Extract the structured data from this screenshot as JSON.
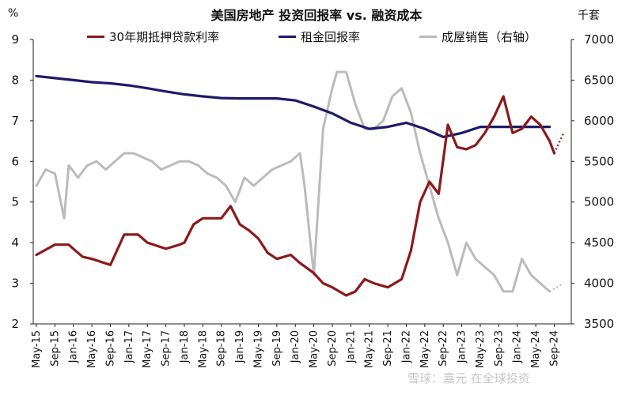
{
  "chart_data": {
    "type": "line",
    "title": "美国房地产 投资回报率 vs. 融资成本",
    "left_unit": "%",
    "right_unit": "千套",
    "legend_placement": "top",
    "grid": false,
    "left_axis": {
      "ylim": [
        2,
        9
      ],
      "ticks": [
        "2",
        "3",
        "4",
        "5",
        "6",
        "7",
        "8",
        "9"
      ]
    },
    "right_axis": {
      "ylim": [
        3500,
        7000
      ],
      "ticks": [
        "3500",
        "4000",
        "4500",
        "5000",
        "5500",
        "6000",
        "6500",
        "7000"
      ]
    },
    "x_ticks": [
      "May-15",
      "Sep-15",
      "Jan-16",
      "May-16",
      "Sep-16",
      "Jan-17",
      "May-17",
      "Sep-17",
      "Jan-18",
      "May-18",
      "Sep-18",
      "Jan-19",
      "May-19",
      "Sep-19",
      "Jan-20",
      "May-20",
      "Sep-20",
      "Jan-21",
      "May-21",
      "Sep-21",
      "Jan-22",
      "May-22",
      "Sep-22",
      "Jan-23",
      "May-23",
      "Sep-23",
      "Jan-24",
      "May-24",
      "Sep-24"
    ],
    "series": [
      {
        "name": "30年期抵押贷款利率",
        "axis": "left",
        "color": "#8b1a1a",
        "points": [
          [
            "May-15",
            3.7
          ],
          [
            "Sep-15",
            3.95
          ],
          [
            "Dec-15",
            3.95
          ],
          [
            "Jan-16",
            3.85
          ],
          [
            "Mar-16",
            3.65
          ],
          [
            "May-16",
            3.6
          ],
          [
            "Sep-16",
            3.45
          ],
          [
            "Dec-16",
            4.2
          ],
          [
            "Mar-17",
            4.2
          ],
          [
            "May-17",
            4.0
          ],
          [
            "Sep-17",
            3.85
          ],
          [
            "Dec-17",
            3.95
          ],
          [
            "Jan-18",
            4.0
          ],
          [
            "Mar-18",
            4.45
          ],
          [
            "May-18",
            4.6
          ],
          [
            "Sep-18",
            4.6
          ],
          [
            "Nov-18",
            4.9
          ],
          [
            "Jan-19",
            4.45
          ],
          [
            "Mar-19",
            4.3
          ],
          [
            "May-19",
            4.1
          ],
          [
            "Jul-19",
            3.75
          ],
          [
            "Sep-19",
            3.6
          ],
          [
            "Dec-19",
            3.7
          ],
          [
            "Feb-20",
            3.5
          ],
          [
            "May-20",
            3.25
          ],
          [
            "Jul-20",
            3.0
          ],
          [
            "Sep-20",
            2.9
          ],
          [
            "Dec-20",
            2.7
          ],
          [
            "Feb-21",
            2.8
          ],
          [
            "Apr-21",
            3.1
          ],
          [
            "Jun-21",
            3.0
          ],
          [
            "Sep-21",
            2.9
          ],
          [
            "Dec-21",
            3.1
          ],
          [
            "Feb-22",
            3.8
          ],
          [
            "Apr-22",
            5.0
          ],
          [
            "Jun-22",
            5.5
          ],
          [
            "Aug-22",
            5.2
          ],
          [
            "Oct-22",
            6.9
          ],
          [
            "Dec-22",
            6.35
          ],
          [
            "Feb-23",
            6.3
          ],
          [
            "Apr-23",
            6.4
          ],
          [
            "Jun-23",
            6.7
          ],
          [
            "Aug-23",
            7.1
          ],
          [
            "Oct-23",
            7.6
          ],
          [
            "Dec-23",
            6.7
          ],
          [
            "Feb-24",
            6.8
          ],
          [
            "Apr-24",
            7.1
          ],
          [
            "Jun-24",
            6.9
          ],
          [
            "Aug-24",
            6.5
          ],
          [
            "Sep-24",
            6.2
          ]
        ],
        "projection": [
          [
            "Sep-24",
            6.2
          ],
          [
            "Nov-24",
            6.7
          ]
        ]
      },
      {
        "name": "租金回报率",
        "axis": "left",
        "color": "#1b1b6b",
        "points": [
          [
            "May-15",
            8.1
          ],
          [
            "Sep-15",
            8.05
          ],
          [
            "Jan-16",
            8.0
          ],
          [
            "May-16",
            7.95
          ],
          [
            "Sep-16",
            7.92
          ],
          [
            "Jan-17",
            7.87
          ],
          [
            "May-17",
            7.8
          ],
          [
            "Sep-17",
            7.72
          ],
          [
            "Jan-18",
            7.65
          ],
          [
            "May-18",
            7.6
          ],
          [
            "Sep-18",
            7.56
          ],
          [
            "Jan-19",
            7.55
          ],
          [
            "May-19",
            7.55
          ],
          [
            "Sep-19",
            7.55
          ],
          [
            "Jan-20",
            7.5
          ],
          [
            "May-20",
            7.35
          ],
          [
            "Sep-20",
            7.18
          ],
          [
            "Jan-21",
            6.95
          ],
          [
            "May-21",
            6.8
          ],
          [
            "Sep-21",
            6.85
          ],
          [
            "Jan-22",
            6.95
          ],
          [
            "May-22",
            6.8
          ],
          [
            "Sep-22",
            6.6
          ],
          [
            "Jan-23",
            6.7
          ],
          [
            "May-23",
            6.85
          ],
          [
            "Sep-23",
            6.85
          ],
          [
            "Jan-24",
            6.85
          ],
          [
            "May-24",
            6.85
          ],
          [
            "Aug-24",
            6.85
          ]
        ]
      },
      {
        "name": "成屋销售（右轴）",
        "axis": "right",
        "color": "#bbbbbb",
        "points": [
          [
            "May-15",
            5200
          ],
          [
            "Jul-15",
            5400
          ],
          [
            "Sep-15",
            5350
          ],
          [
            "Nov-15",
            4800
          ],
          [
            "Dec-15",
            5450
          ],
          [
            "Feb-16",
            5300
          ],
          [
            "Apr-16",
            5450
          ],
          [
            "Jun-16",
            5500
          ],
          [
            "Aug-16",
            5400
          ],
          [
            "Oct-16",
            5500
          ],
          [
            "Dec-16",
            5600
          ],
          [
            "Feb-17",
            5600
          ],
          [
            "Apr-17",
            5550
          ],
          [
            "Jun-17",
            5500
          ],
          [
            "Aug-17",
            5400
          ],
          [
            "Oct-17",
            5450
          ],
          [
            "Dec-17",
            5500
          ],
          [
            "Feb-18",
            5500
          ],
          [
            "Apr-18",
            5450
          ],
          [
            "Jun-18",
            5350
          ],
          [
            "Aug-18",
            5300
          ],
          [
            "Oct-18",
            5200
          ],
          [
            "Dec-18",
            5000
          ],
          [
            "Feb-19",
            5300
          ],
          [
            "Apr-19",
            5200
          ],
          [
            "Jun-19",
            5300
          ],
          [
            "Aug-19",
            5400
          ],
          [
            "Oct-19",
            5450
          ],
          [
            "Dec-19",
            5500
          ],
          [
            "Feb-20",
            5600
          ],
          [
            "Mar-20",
            5200
          ],
          [
            "May-20",
            4100
          ],
          [
            "Jul-20",
            5900
          ],
          [
            "Sep-20",
            6400
          ],
          [
            "Oct-20",
            6600
          ],
          [
            "Dec-20",
            6600
          ],
          [
            "Feb-21",
            6200
          ],
          [
            "Apr-21",
            5900
          ],
          [
            "Jun-21",
            5900
          ],
          [
            "Aug-21",
            6000
          ],
          [
            "Oct-21",
            6300
          ],
          [
            "Dec-21",
            6400
          ],
          [
            "Feb-22",
            6100
          ],
          [
            "Apr-22",
            5600
          ],
          [
            "Jun-22",
            5200
          ],
          [
            "Aug-22",
            4800
          ],
          [
            "Oct-22",
            4500
          ],
          [
            "Dec-22",
            4100
          ],
          [
            "Feb-23",
            4500
          ],
          [
            "Apr-23",
            4300
          ],
          [
            "Jun-23",
            4200
          ],
          [
            "Aug-23",
            4100
          ],
          [
            "Oct-23",
            3900
          ],
          [
            "Dec-23",
            3900
          ],
          [
            "Feb-24",
            4300
          ],
          [
            "Apr-24",
            4100
          ],
          [
            "Jun-24",
            4000
          ],
          [
            "Aug-24",
            3900
          ]
        ],
        "projection": [
          [
            "Aug-24",
            3900
          ],
          [
            "Nov-24",
            4000
          ]
        ]
      }
    ]
  },
  "watermark": "雪球：嘉元 在全球投资"
}
